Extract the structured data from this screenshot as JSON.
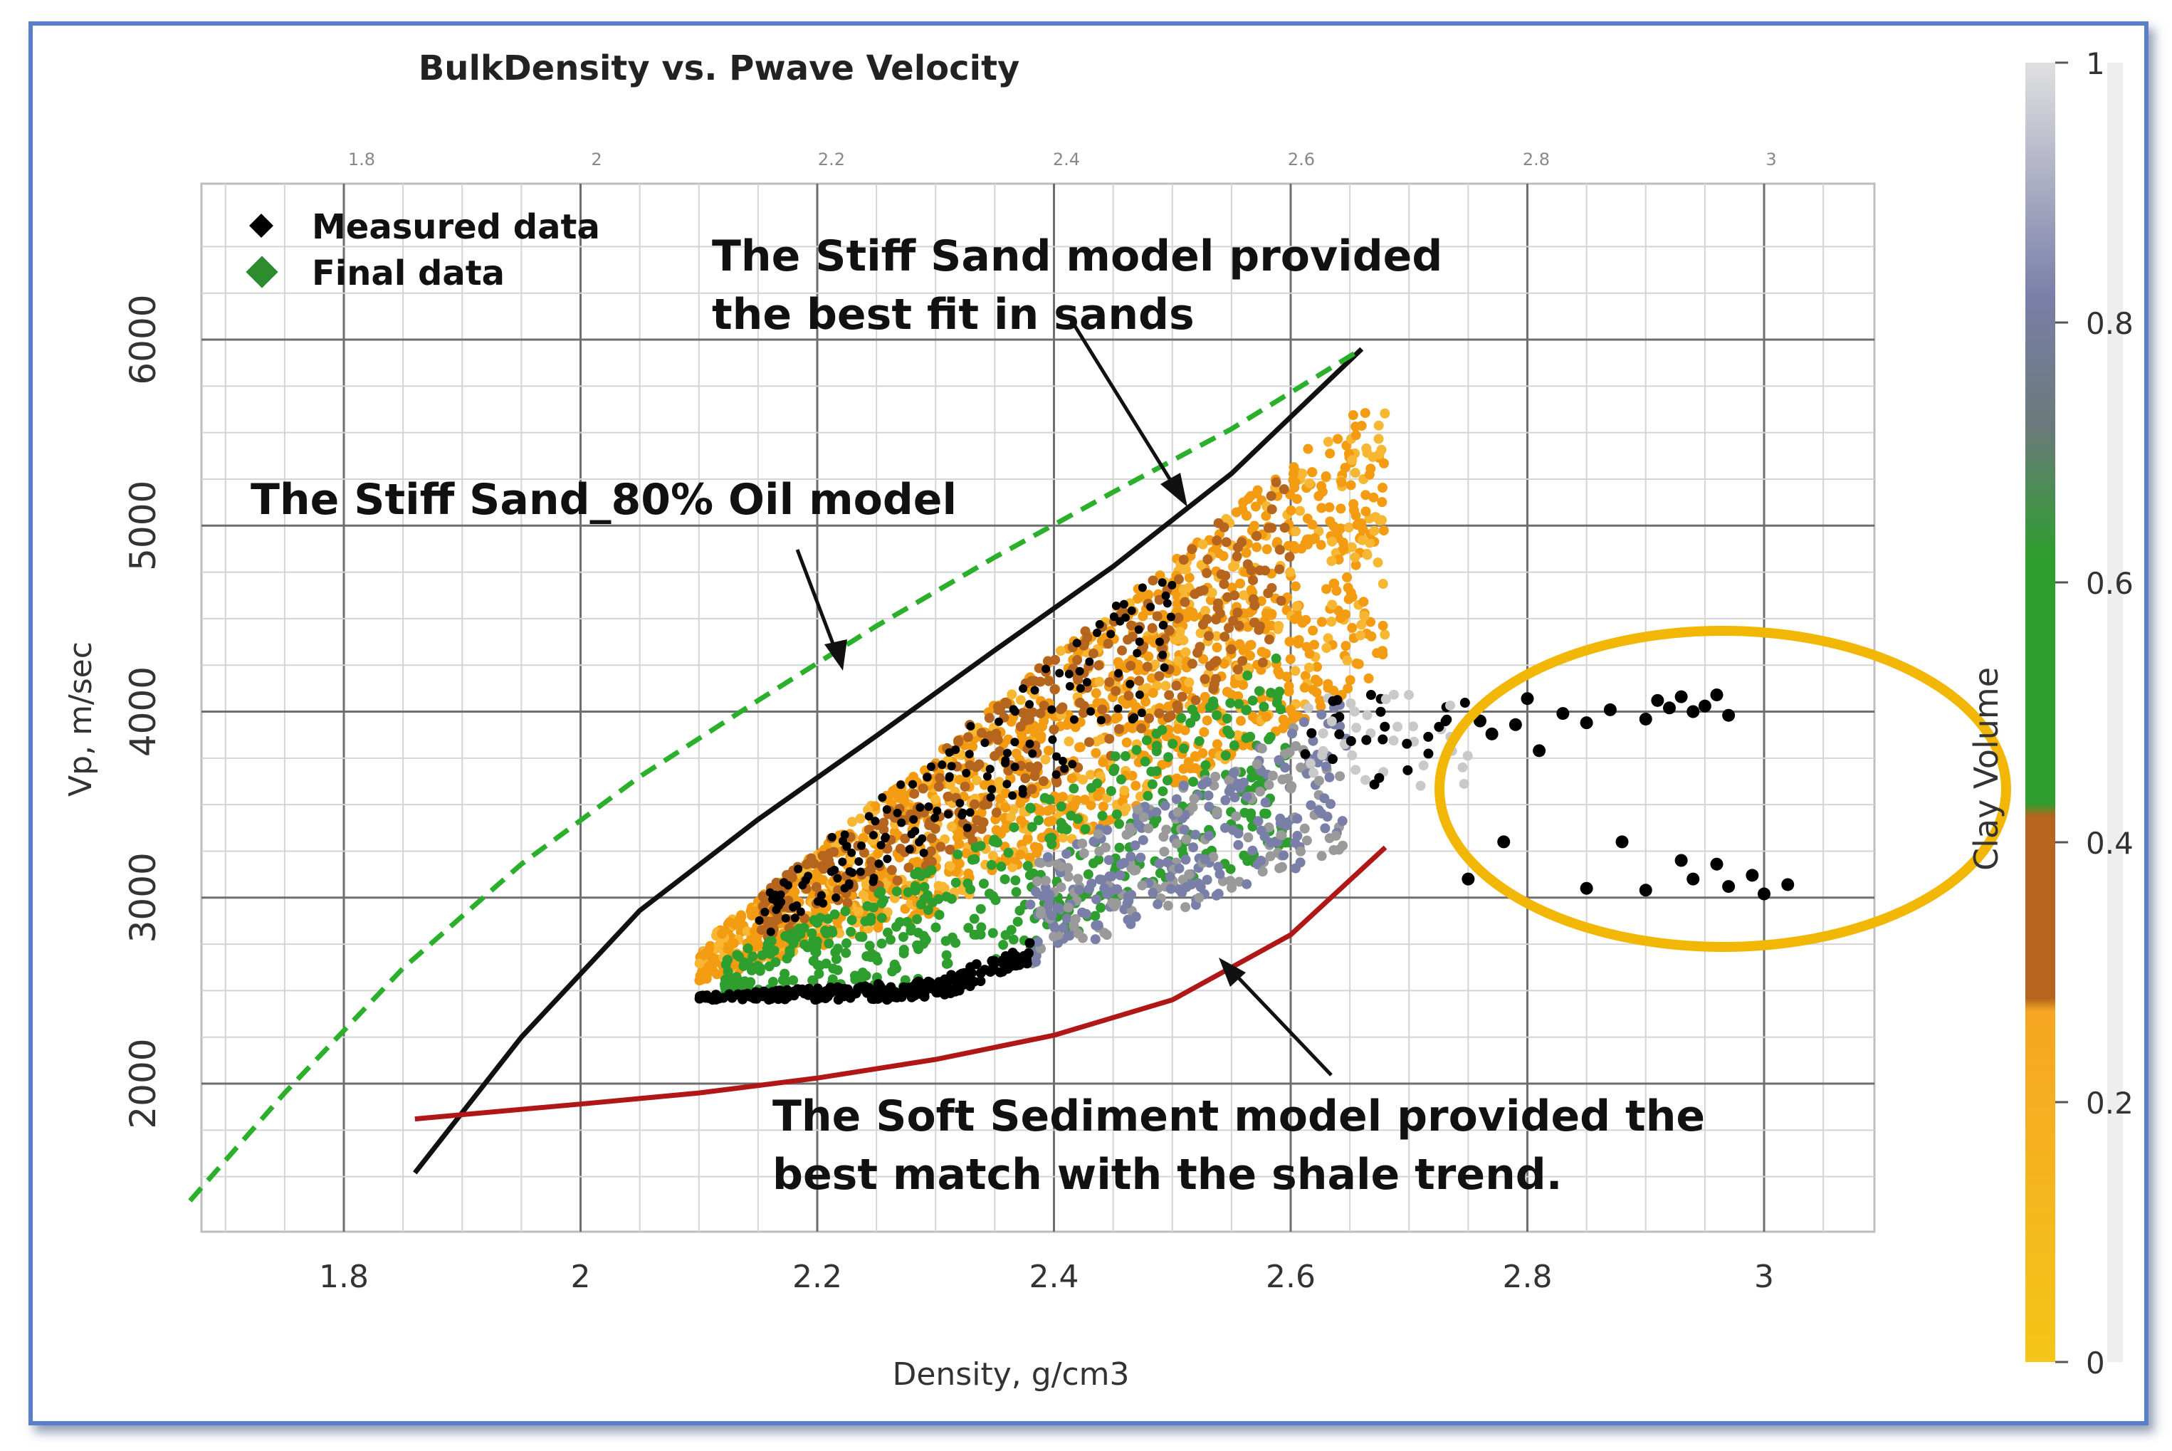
{
  "chart_data": {
    "type": "scatter",
    "title": "BulkDensity vs. Pwave Velocity",
    "xlabel": "Density, g/cm3",
    "ylabel": "Vp, m/sec",
    "xlim": [
      1.67,
      3.15
    ],
    "ylim": [
      1200,
      6800
    ],
    "x_ticks": [
      "1.8",
      "2",
      "2.2",
      "2.4",
      "2.6",
      "2.8",
      "3"
    ],
    "x_ticks_values": [
      1.8,
      2.0,
      2.2,
      2.4,
      2.6,
      2.8,
      3.0
    ],
    "top_ticks": [
      "1.8",
      "2",
      "2.2",
      "2.4",
      "2.6",
      "2.8",
      "3"
    ],
    "y_ticks": [
      "2000",
      "3000",
      "4000",
      "5000",
      "6000"
    ],
    "y_ticks_values": [
      2000,
      3000,
      4000,
      5000,
      6000
    ],
    "grid": true,
    "legend": {
      "position": "top-left",
      "items": [
        {
          "name": "Measured data",
          "color": "#000000"
        },
        {
          "name": "Final data",
          "color": "#2e8b2e"
        }
      ]
    },
    "colorbar": {
      "label": "Clay Volume",
      "ticks": [
        "0",
        "0.2",
        "0.4",
        "0.6",
        "0.8",
        "1"
      ],
      "tick_values": [
        0,
        0.2,
        0.4,
        0.6,
        0.8,
        1.0
      ],
      "colors": [
        "#f5c518",
        "#f39c12",
        "#b5651d",
        "#2e9e2e",
        "#7a7fa8",
        "#d9d9d9"
      ]
    },
    "models": [
      {
        "name": "Stiff Sand",
        "color": "#111111",
        "dash": "solid",
        "points": [
          [
            1.86,
            1520
          ],
          [
            1.95,
            2250
          ],
          [
            2.05,
            2930
          ],
          [
            2.15,
            3420
          ],
          [
            2.25,
            3870
          ],
          [
            2.35,
            4330
          ],
          [
            2.45,
            4780
          ],
          [
            2.55,
            5280
          ],
          [
            2.66,
            5950
          ]
        ]
      },
      {
        "name": "Stiff Sand_80% Oil",
        "color": "#2ab02a",
        "dash": "dashed",
        "points": [
          [
            1.67,
            1370
          ],
          [
            1.75,
            1950
          ],
          [
            1.85,
            2620
          ],
          [
            1.95,
            3180
          ],
          [
            2.05,
            3650
          ],
          [
            2.15,
            4060
          ],
          [
            2.25,
            4460
          ],
          [
            2.35,
            4830
          ],
          [
            2.45,
            5180
          ],
          [
            2.55,
            5520
          ],
          [
            2.66,
            5950
          ]
        ]
      },
      {
        "name": "Soft Sediment",
        "color": "#b01818",
        "dash": "solid",
        "points": [
          [
            1.86,
            1810
          ],
          [
            2.0,
            1890
          ],
          [
            2.1,
            1950
          ],
          [
            2.2,
            2030
          ],
          [
            2.3,
            2130
          ],
          [
            2.4,
            2260
          ],
          [
            2.5,
            2450
          ],
          [
            2.6,
            2800
          ],
          [
            2.68,
            3270
          ]
        ]
      }
    ],
    "measured_outliers": [
      [
        2.76,
        3950
      ],
      [
        2.77,
        3880
      ],
      [
        2.79,
        3930
      ],
      [
        2.8,
        4070
      ],
      [
        2.81,
        3790
      ],
      [
        2.83,
        3990
      ],
      [
        2.85,
        3940
      ],
      [
        2.87,
        4010
      ],
      [
        2.9,
        3960
      ],
      [
        2.91,
        4060
      ],
      [
        2.92,
        4020
      ],
      [
        2.93,
        4080
      ],
      [
        2.94,
        4000
      ],
      [
        2.95,
        4030
      ],
      [
        2.96,
        4090
      ],
      [
        2.97,
        3980
      ],
      [
        2.75,
        3100
      ],
      [
        2.78,
        3300
      ],
      [
        2.85,
        3050
      ],
      [
        2.88,
        3300
      ],
      [
        2.9,
        3040
      ],
      [
        2.93,
        3200
      ],
      [
        2.94,
        3100
      ],
      [
        2.96,
        3180
      ],
      [
        2.97,
        3060
      ],
      [
        2.99,
        3120
      ],
      [
        3.0,
        3020
      ],
      [
        3.02,
        3070
      ]
    ],
    "annotations": [
      {
        "text": [
          "The Stiff Sand model provided",
          "the best fit in sands"
        ]
      },
      {
        "text": [
          "The Stiff Sand_80% Oil model"
        ]
      },
      {
        "text": [
          "The Soft Sediment model provided the",
          "best match with the shale trend."
        ]
      }
    ],
    "highlight": {
      "shape": "ellipse",
      "color": "#f2b705",
      "center": [
        2.9,
        3600
      ]
    }
  }
}
